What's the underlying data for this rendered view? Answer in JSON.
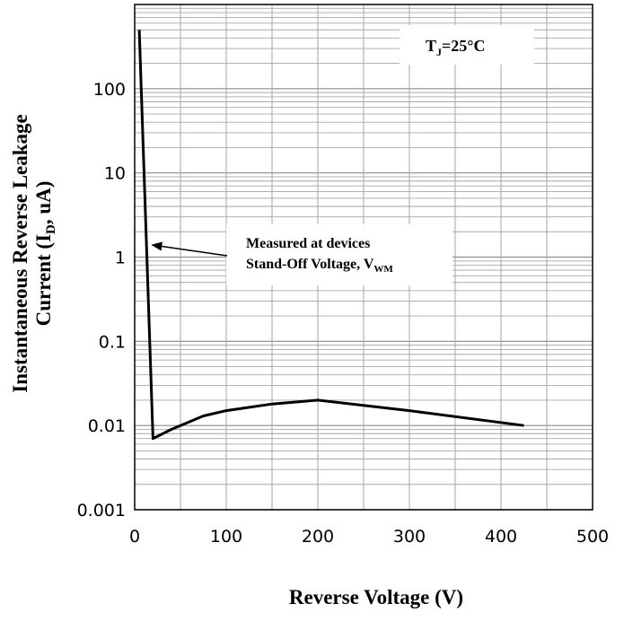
{
  "chart_data": {
    "type": "line",
    "x_axis": {
      "label": "Reverse Voltage (V)",
      "range": [
        0,
        500
      ],
      "ticks": [
        0,
        100,
        200,
        300,
        400,
        500
      ],
      "tick_labels": [
        "0",
        "100",
        "200",
        "300",
        "400",
        "500"
      ]
    },
    "y_axis": {
      "scale": "log",
      "label_line1": "Instantaneous Reverse Leakage",
      "label_line2_prefix": "Current (I",
      "label_line2_sub": "D",
      "label_line2_suffix": ", uA)",
      "range": [
        0.001,
        1000
      ],
      "ticks": [
        0.001,
        0.01,
        0.1,
        1,
        10,
        100
      ],
      "tick_labels": [
        "0.001",
        "0.01",
        "0.1",
        "1",
        "10",
        "100"
      ]
    },
    "grid": true,
    "series": [
      {
        "color": "#000000",
        "points": [
          {
            "x": 5,
            "y": 500
          },
          {
            "x": 20,
            "y": 0.007
          },
          {
            "x": 40,
            "y": 0.009
          },
          {
            "x": 75,
            "y": 0.013
          },
          {
            "x": 100,
            "y": 0.015
          },
          {
            "x": 150,
            "y": 0.018
          },
          {
            "x": 200,
            "y": 0.02
          },
          {
            "x": 300,
            "y": 0.015
          },
          {
            "x": 425,
            "y": 0.01
          }
        ]
      }
    ],
    "annotations": {
      "condition": {
        "prefix": "T",
        "sub": "J",
        "suffix": "=25°C"
      },
      "note": {
        "line1": "Measured at devices",
        "line2_prefix": "Stand-Off Voltage, V",
        "line2_sub": "WM",
        "arrow_target": {
          "x": 18,
          "y": 1.4
        }
      }
    }
  }
}
